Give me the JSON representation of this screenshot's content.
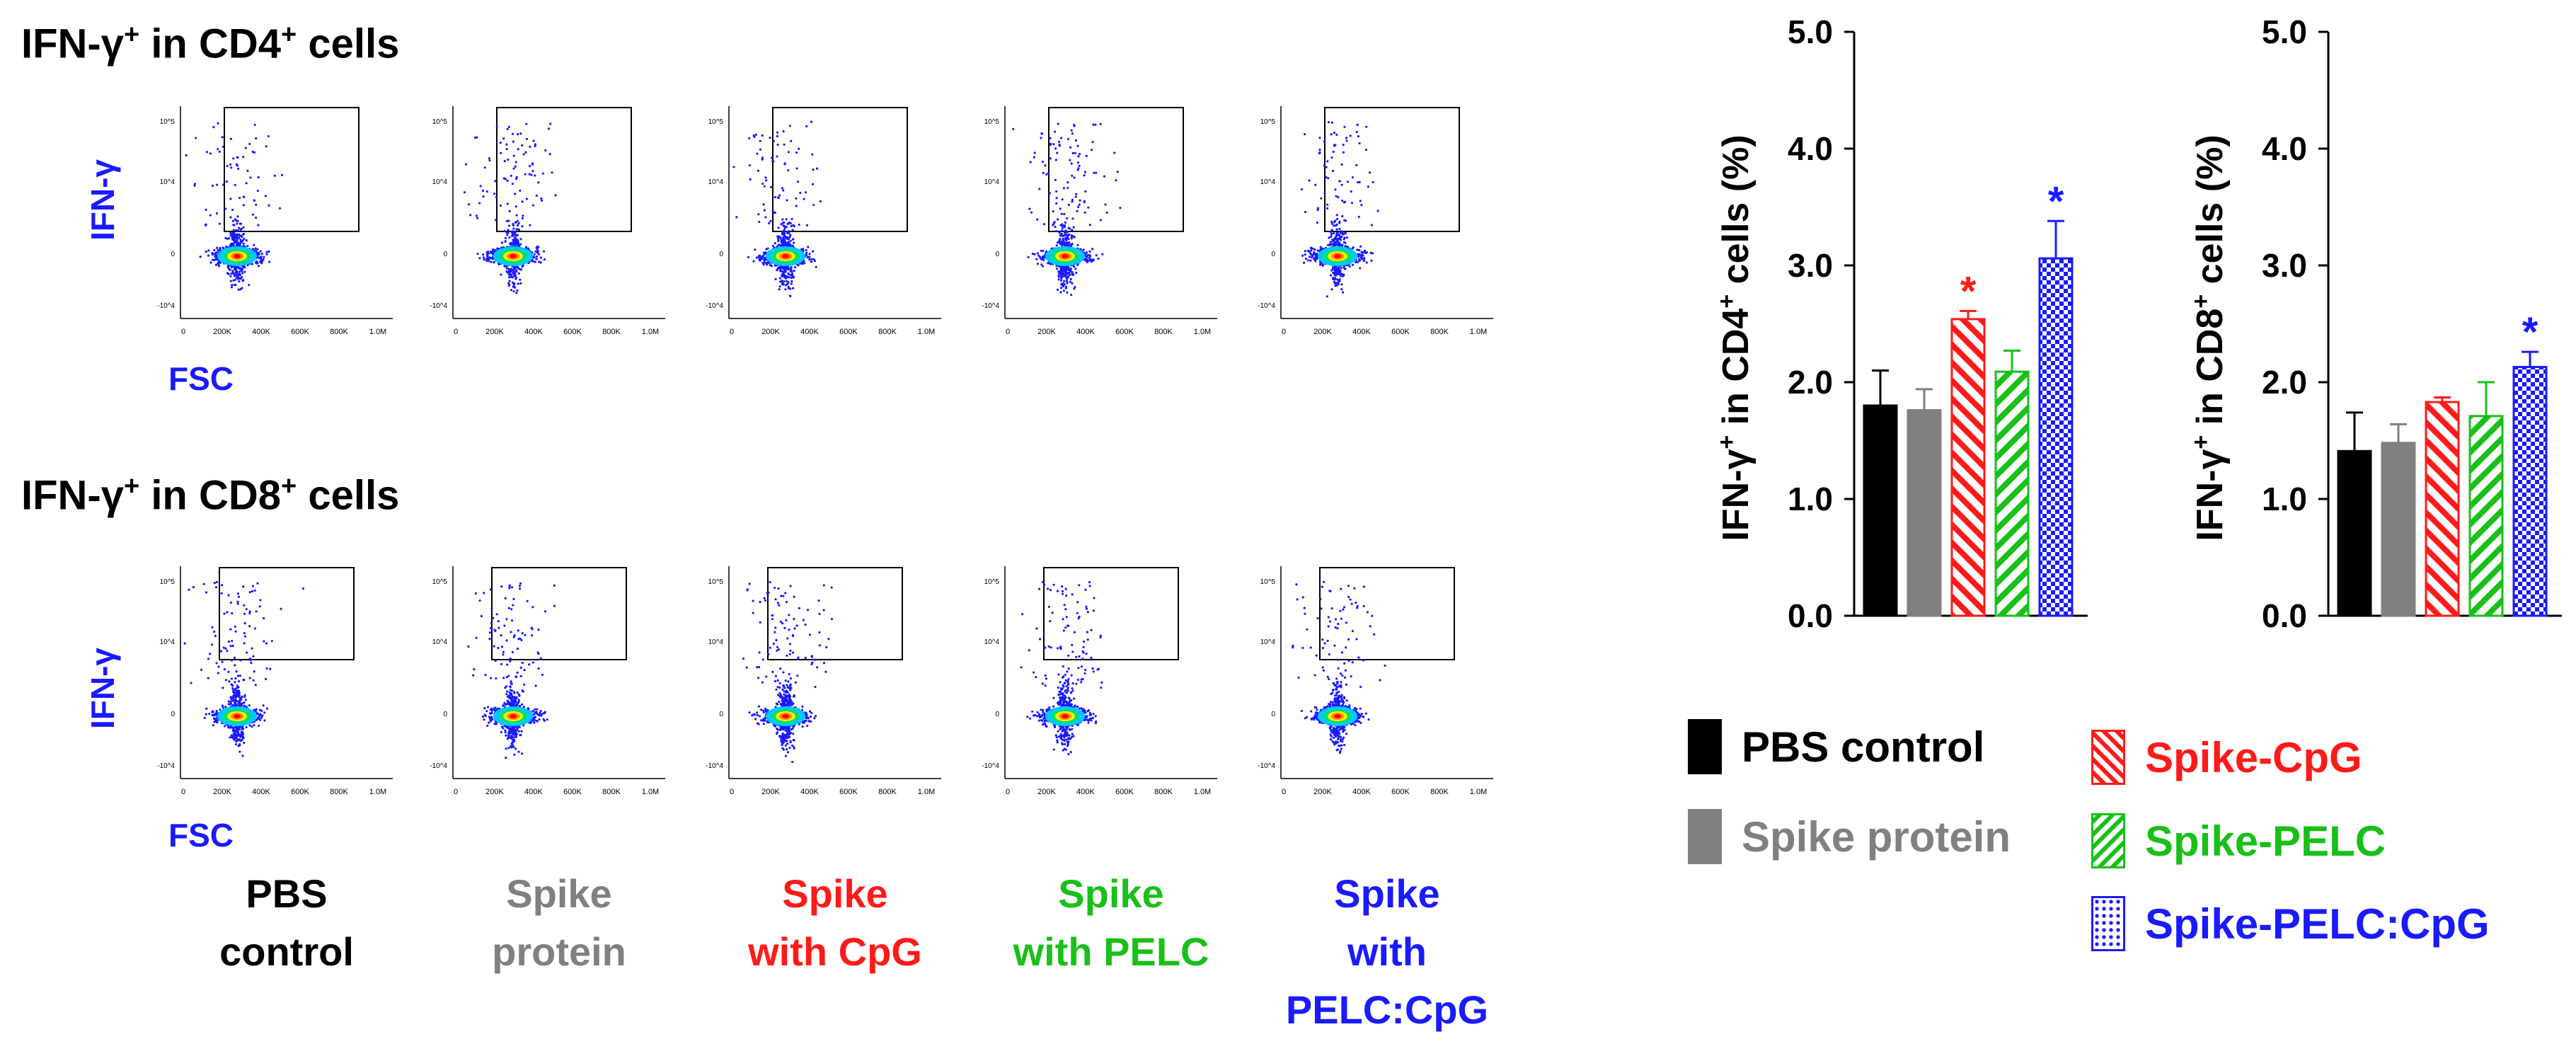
{
  "colors": {
    "pbs": "#000000",
    "spike_protein": "#808080",
    "cpg": "#ff1a1a",
    "pelc": "#18c018",
    "pelc_cpg": "#1a1aff",
    "axis_label_blue": "#1a1aff"
  },
  "flow_section": {
    "cd4_title": {
      "prefix": "IFN-γ",
      "sup1": "+",
      "mid": " in CD4",
      "sup2": "+",
      "suffix": " cells"
    },
    "cd8_title": {
      "prefix": "IFN-γ",
      "sup1": "+",
      "mid": " in CD8",
      "sup2": "+",
      "suffix": " cells"
    },
    "y_axis_label": "IFN-γ",
    "x_axis_label": "FSC",
    "x_ticks": [
      "0",
      "200K",
      "400K",
      "600K",
      "800K",
      "1.0M"
    ],
    "y_ticks": [
      "10^5",
      "10^4",
      "0",
      "-10^4"
    ],
    "groups": [
      {
        "line1": "PBS",
        "line2": "control",
        "color_key": "pbs"
      },
      {
        "line1": "Spike",
        "line2": "protein",
        "color_key": "spike_protein"
      },
      {
        "line1": "Spike",
        "line2": "with CpG",
        "color_key": "cpg"
      },
      {
        "line1": "Spike",
        "line2": "with PELC",
        "color_key": "pelc"
      },
      {
        "line1": "Spike",
        "line2": "with PELC:CpG",
        "color_key": "pelc_cpg"
      }
    ]
  },
  "chart_data": [
    {
      "type": "bar",
      "ylabel_main": "IFN-γ",
      "ylabel_sup": "+",
      "ylabel_rest": " in CD4",
      "ylabel_sup2": "+",
      "ylabel_end": " cells (%)",
      "ylim": [
        0,
        5.0
      ],
      "y_ticks": [
        "0.0",
        "1.0",
        "2.0",
        "3.0",
        "4.0",
        "5.0"
      ],
      "categories": [
        "PBS control",
        "Spike protein",
        "Spike-CpG",
        "Spike-PELC",
        "Spike-PELC:CpG"
      ],
      "values": [
        1.8,
        1.76,
        2.54,
        2.09,
        3.06
      ],
      "errors": [
        0.3,
        0.18,
        0.07,
        0.18,
        0.32
      ],
      "significance": [
        "",
        "",
        "*",
        "",
        "*"
      ]
    },
    {
      "type": "bar",
      "ylabel_main": "IFN-γ",
      "ylabel_sup": "+",
      "ylabel_rest": " in CD8",
      "ylabel_sup2": "+",
      "ylabel_end": " cells (%)",
      "ylim": [
        0,
        5.0
      ],
      "y_ticks": [
        "0.0",
        "1.0",
        "2.0",
        "3.0",
        "4.0",
        "5.0"
      ],
      "categories": [
        "PBS control",
        "Spike protein",
        "Spike-CpG",
        "Spike-PELC",
        "Spike-PELC:CpG"
      ],
      "values": [
        1.41,
        1.48,
        1.83,
        1.71,
        2.13
      ],
      "errors": [
        0.33,
        0.16,
        0.04,
        0.29,
        0.13
      ],
      "significance": [
        "",
        "",
        "",
        "",
        "*"
      ]
    }
  ],
  "legend": [
    {
      "label": "PBS control",
      "color_key": "pbs",
      "pattern": "solid"
    },
    {
      "label": "Spike protein",
      "color_key": "spike_protein",
      "pattern": "solid"
    },
    {
      "label": "Spike-CpG",
      "color_key": "cpg",
      "pattern": "hatch-back"
    },
    {
      "label": "Spike-PELC",
      "color_key": "pelc",
      "pattern": "hatch-fwd"
    },
    {
      "label": "Spike-PELC:CpG",
      "color_key": "pelc_cpg",
      "pattern": "dots"
    }
  ]
}
